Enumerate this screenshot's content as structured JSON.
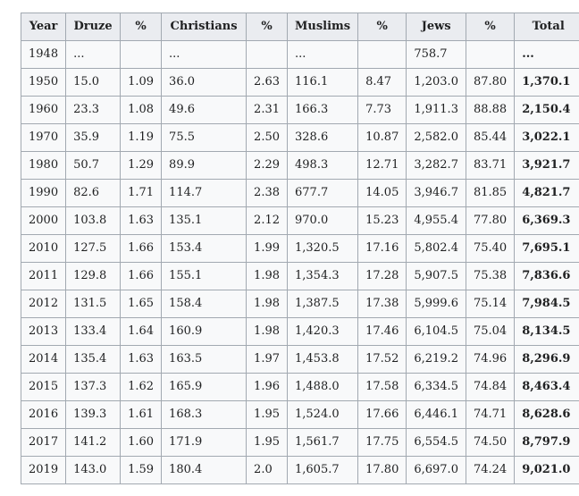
{
  "colors": {
    "page_background": "#ffffff",
    "table_background": "#f8f9fa",
    "header_background": "#eaecf0",
    "border": "#a2a9b1",
    "text": "#202122"
  },
  "chart_data": {
    "type": "table",
    "columns": [
      "Year",
      "Druze",
      "%",
      "Christians",
      "%",
      "Muslims",
      "%",
      "Jews",
      "%",
      "Total"
    ],
    "rows": [
      [
        "1948",
        "...",
        "",
        "...",
        "",
        "...",
        "",
        "758.7",
        "",
        "..."
      ],
      [
        "1950",
        "15.0",
        "1.09",
        "36.0",
        "2.63",
        "116.1",
        "8.47",
        "1,203.0",
        "87.80",
        "1,370.1"
      ],
      [
        "1960",
        "23.3",
        "1.08",
        "49.6",
        "2.31",
        "166.3",
        "7.73",
        "1,911.3",
        "88.88",
        "2,150.4"
      ],
      [
        "1970",
        "35.9",
        "1.19",
        "75.5",
        "2.50",
        "328.6",
        "10.87",
        "2,582.0",
        "85.44",
        "3,022.1"
      ],
      [
        "1980",
        "50.7",
        "1.29",
        "89.9",
        "2.29",
        "498.3",
        "12.71",
        "3,282.7",
        "83.71",
        "3,921.7"
      ],
      [
        "1990",
        "82.6",
        "1.71",
        "114.7",
        "2.38",
        "677.7",
        "14.05",
        "3,946.7",
        "81.85",
        "4,821.7"
      ],
      [
        "2000",
        "103.8",
        "1.63",
        "135.1",
        "2.12",
        "970.0",
        "15.23",
        "4,955.4",
        "77.80",
        "6,369.3"
      ],
      [
        "2010",
        "127.5",
        "1.66",
        "153.4",
        "1.99",
        "1,320.5",
        "17.16",
        "5,802.4",
        "75.40",
        "7,695.1"
      ],
      [
        "2011",
        "129.8",
        "1.66",
        "155.1",
        "1.98",
        "1,354.3",
        "17.28",
        "5,907.5",
        "75.38",
        "7,836.6"
      ],
      [
        "2012",
        "131.5",
        "1.65",
        "158.4",
        "1.98",
        "1,387.5",
        "17.38",
        "5,999.6",
        "75.14",
        "7,984.5"
      ],
      [
        "2013",
        "133.4",
        "1.64",
        "160.9",
        "1.98",
        "1,420.3",
        "17.46",
        "6,104.5",
        "75.04",
        "8,134.5"
      ],
      [
        "2014",
        "135.4",
        "1.63",
        "163.5",
        "1.97",
        "1,453.8",
        "17.52",
        "6,219.2",
        "74.96",
        "8,296.9"
      ],
      [
        "2015",
        "137.3",
        "1.62",
        "165.9",
        "1.96",
        "1,488.0",
        "17.58",
        "6,334.5",
        "74.84",
        "8,463.4"
      ],
      [
        "2016",
        "139.3",
        "1.61",
        "168.3",
        "1.95",
        "1,524.0",
        "17.66",
        "6,446.1",
        "74.71",
        "8,628.6"
      ],
      [
        "2017",
        "141.2",
        "1.60",
        "171.9",
        "1.95",
        "1,561.7",
        "17.75",
        "6,554.5",
        "74.50",
        "8,797.9"
      ],
      [
        "2019",
        "143.0",
        "1.59",
        "180.4",
        "2.0",
        "1,605.7",
        "17.80",
        "6,697.0",
        "74.24",
        "9,021.0"
      ]
    ],
    "layout": {
      "header_align": "center",
      "cell_align": "left",
      "bold_columns": [
        "Total"
      ],
      "grid": true
    }
  }
}
